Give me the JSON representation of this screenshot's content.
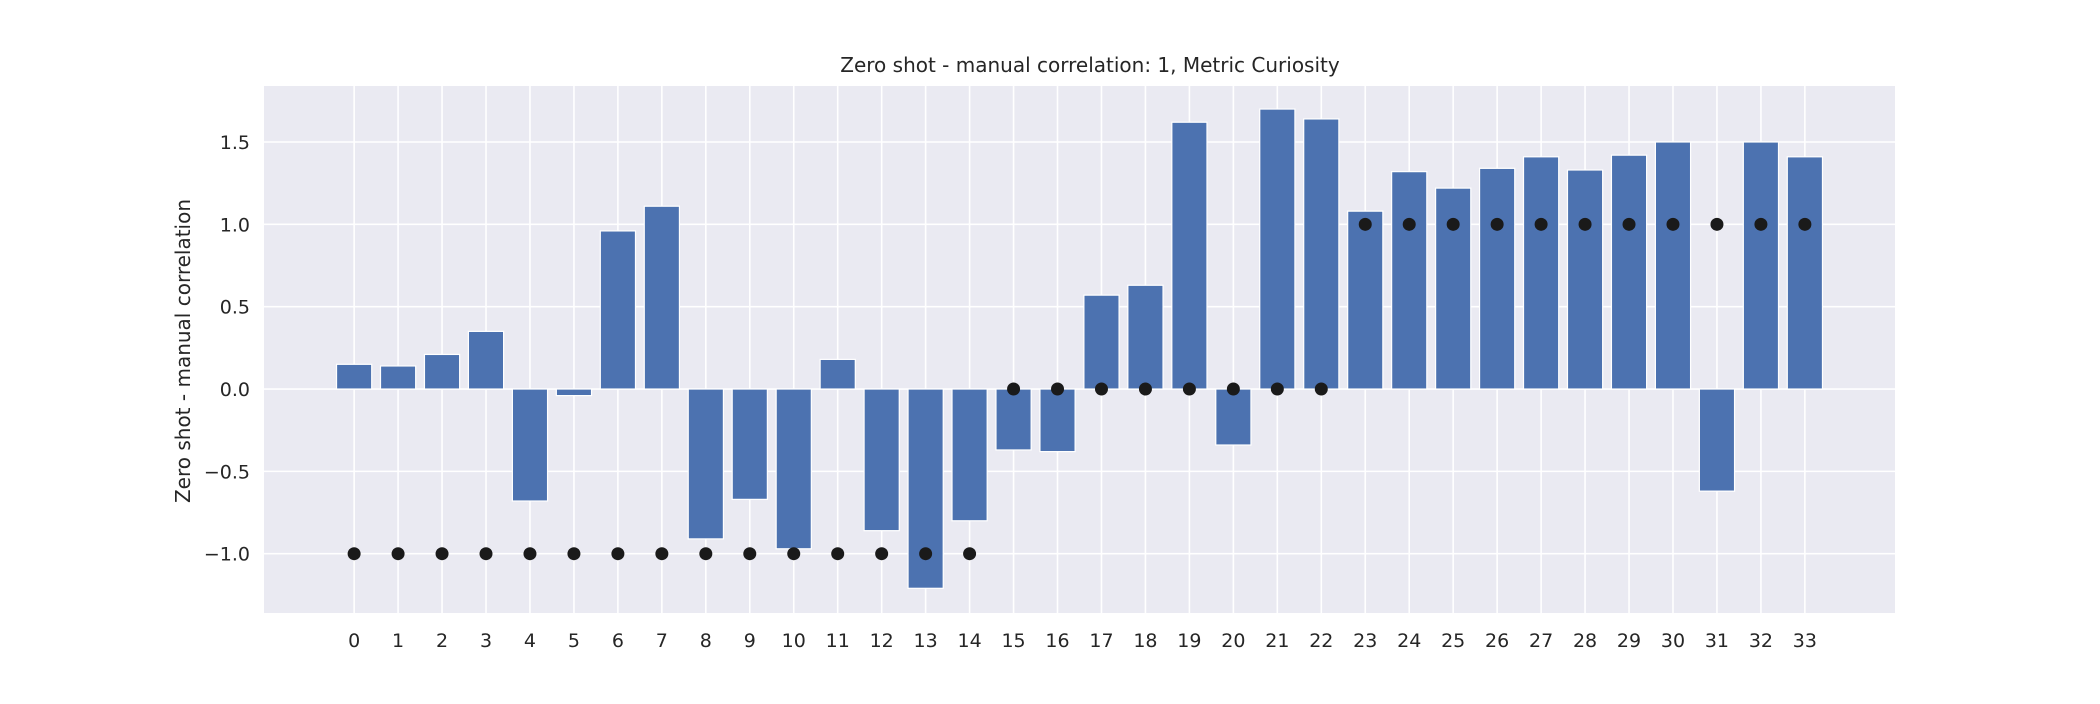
{
  "chart_data": {
    "type": "bar",
    "title": "Zero shot - manual correlation: 1, Metric Curiosity",
    "xlabel": "",
    "ylabel": "Zero shot - manual correlation",
    "categories": [
      "0",
      "1",
      "2",
      "3",
      "4",
      "5",
      "6",
      "7",
      "8",
      "9",
      "10",
      "11",
      "12",
      "13",
      "14",
      "15",
      "16",
      "17",
      "18",
      "19",
      "20",
      "21",
      "22",
      "23",
      "24",
      "25",
      "26",
      "27",
      "28",
      "29",
      "30",
      "31",
      "32",
      "33"
    ],
    "series": [
      {
        "type": "bar",
        "values": [
          0.15,
          0.14,
          0.21,
          0.35,
          -0.68,
          -0.04,
          0.96,
          1.11,
          -0.91,
          -0.67,
          -0.97,
          0.18,
          -0.86,
          -1.21,
          -0.8,
          -0.37,
          -0.38,
          0.57,
          0.63,
          1.62,
          -0.34,
          1.7,
          1.64,
          1.08,
          1.32,
          1.22,
          1.34,
          1.41,
          1.33,
          1.42,
          1.5,
          -0.62,
          1.5,
          1.41
        ],
        "color": "#4c72b0"
      },
      {
        "type": "scatter",
        "values": [
          -1,
          -1,
          -1,
          -1,
          -1,
          -1,
          -1,
          -1,
          -1,
          -1,
          -1,
          -1,
          -1,
          -1,
          -1,
          0,
          0,
          0,
          0,
          0,
          0,
          0,
          0,
          1,
          1,
          1,
          1,
          1,
          1,
          1,
          1,
          1,
          1,
          1
        ],
        "color": "#1a1a1a"
      }
    ],
    "yticks": [
      -1.0,
      -0.5,
      0.0,
      0.5,
      1.0,
      1.5
    ],
    "ytick_labels": [
      "−1.0",
      "−0.5",
      "0.0",
      "0.5",
      "1.0",
      "1.5"
    ],
    "ylim": [
      -1.36,
      1.84
    ],
    "xlim": [
      -2.05,
      35.05
    ],
    "grid": true,
    "style": {
      "plot_background": "#eaeaf2",
      "grid_color": "#ffffff",
      "bar_color": "#4c72b0",
      "dot_color": "#1a1a1a"
    }
  }
}
